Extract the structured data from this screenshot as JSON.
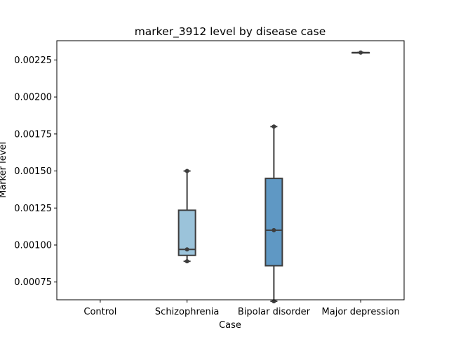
{
  "chart_data": {
    "type": "box",
    "title": "marker_3912 level by disease case",
    "xlabel": "Case",
    "ylabel": "Marker level",
    "ylim": [
      0.00063,
      0.00238
    ],
    "yticks": [
      0.00075,
      0.001,
      0.00125,
      0.0015,
      0.00175,
      0.002,
      0.00225
    ],
    "ytick_labels": [
      "0.00075",
      "0.00100",
      "0.00125",
      "0.00150",
      "0.00175",
      "0.00200",
      "0.00225"
    ],
    "grid": false,
    "categories": [
      "Control",
      "Schizophrenia",
      "Bipolar disorder",
      "Major depression"
    ],
    "boxes": [
      {
        "category": "Control",
        "stats": null,
        "points": [],
        "color": null
      },
      {
        "category": "Schizophrenia",
        "stats": {
          "whisker_low": 0.00089,
          "q1": 0.00093,
          "median": 0.00097,
          "q3": 0.001235,
          "whisker_high": 0.0015
        },
        "points": [
          0.00089,
          0.00097,
          0.0015
        ],
        "color": "#9bc3da"
      },
      {
        "category": "Bipolar disorder",
        "stats": {
          "whisker_low": 0.00062,
          "q1": 0.00086,
          "median": 0.0011,
          "q3": 0.00145,
          "whisker_high": 0.0018
        },
        "points": [
          0.00062,
          0.0011,
          0.0018
        ],
        "color": "#5f98c4"
      },
      {
        "category": "Major depression",
        "stats": {
          "whisker_low": 0.0023,
          "q1": 0.0023,
          "median": 0.0023,
          "q3": 0.0023,
          "whisker_high": 0.0023
        },
        "points": [
          0.0023
        ],
        "color": "#2f6fa8"
      }
    ],
    "line_color": "#3d3d3d",
    "frame_color": "#000000"
  }
}
